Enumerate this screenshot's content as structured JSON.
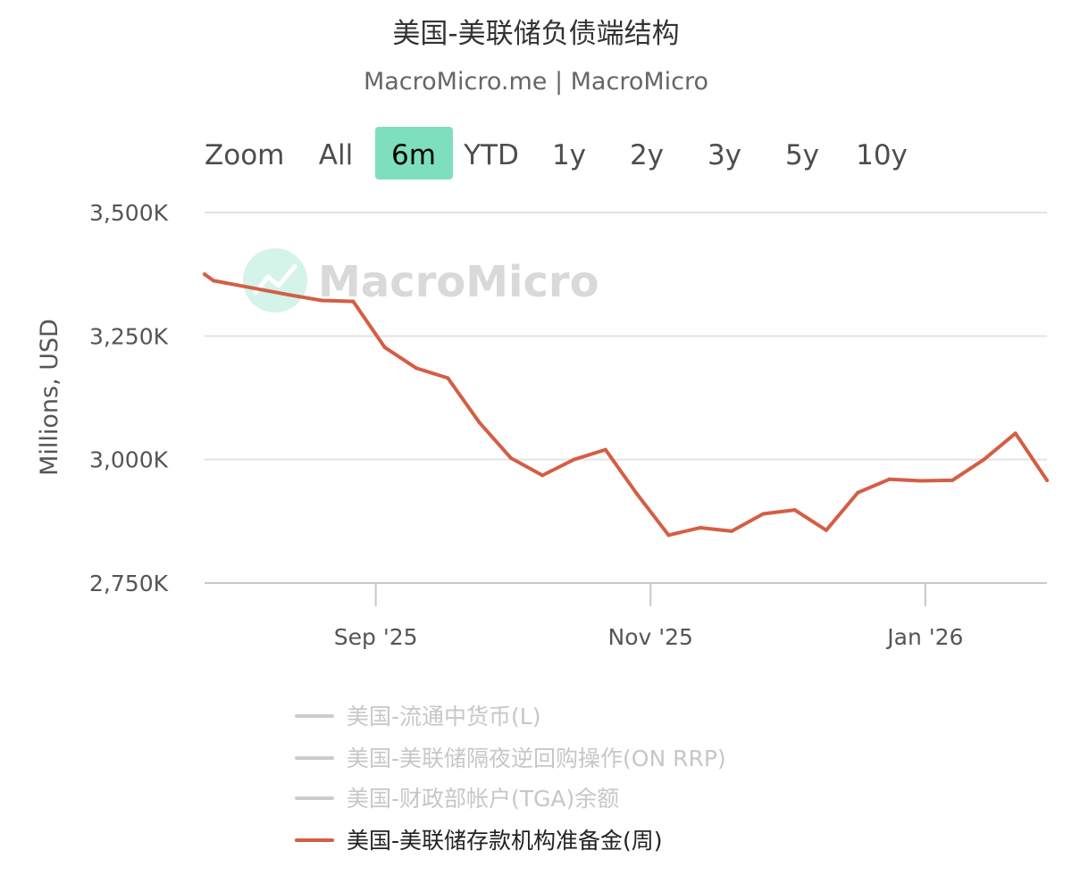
{
  "chart_data": {
    "type": "line",
    "title": "美国-美联储负债端结构",
    "subtitle": "MacroMicro.me | MacroMicro",
    "ylabel": "Millions, USD",
    "ylim": [
      2750000,
      3500000
    ],
    "y_ticks": [
      {
        "value": 3500000,
        "label": "3,500K"
      },
      {
        "value": 3250000,
        "label": "3,250K"
      },
      {
        "value": 3000000,
        "label": "3,000K"
      },
      {
        "value": 2750000,
        "label": "2,750K"
      }
    ],
    "xlim": [
      "2025-07-25",
      "2026-01-28"
    ],
    "x_ticks": [
      {
        "date": "2025-09-01",
        "label": "Sep '25"
      },
      {
        "date": "2025-11-01",
        "label": "Nov '25"
      },
      {
        "date": "2026-01-01",
        "label": "Jan '26"
      }
    ],
    "grid": true,
    "legend_position": "bottom",
    "watermark": "MacroMicro",
    "range_selector": {
      "label": "Zoom",
      "buttons": [
        "All",
        "6m",
        "YTD",
        "1y",
        "2y",
        "3y",
        "5y",
        "10y"
      ],
      "selected": "6m"
    },
    "series": [
      {
        "name": "美国-流通中货币(L)",
        "visible": false,
        "color": "#cccccc",
        "points": []
      },
      {
        "name": "美国-美联储隔夜逆回购操作(ON RRP)",
        "visible": false,
        "color": "#cccccc",
        "points": []
      },
      {
        "name": "美国-财政部帐户(TGA)余额",
        "visible": false,
        "color": "#cccccc",
        "points": []
      },
      {
        "name": "美国-美联储存款机构准备金(周)",
        "visible": true,
        "color": "#d45e45",
        "points": [
          {
            "x": "2025-07-25",
            "y": 3375000
          },
          {
            "x": "2025-07-27",
            "y": 3362000
          },
          {
            "x": "2025-08-13",
            "y": 3333000
          },
          {
            "x": "2025-08-20",
            "y": 3322000
          },
          {
            "x": "2025-08-27",
            "y": 3320000
          },
          {
            "x": "2025-09-03",
            "y": 3227000
          },
          {
            "x": "2025-09-10",
            "y": 3185000
          },
          {
            "x": "2025-09-17",
            "y": 3165000
          },
          {
            "x": "2025-09-24",
            "y": 3075000
          },
          {
            "x": "2025-10-01",
            "y": 3003000
          },
          {
            "x": "2025-10-08",
            "y": 2968000
          },
          {
            "x": "2025-10-15",
            "y": 3000000
          },
          {
            "x": "2025-10-22",
            "y": 3020000
          },
          {
            "x": "2025-10-29",
            "y": 2930000
          },
          {
            "x": "2025-11-05",
            "y": 2847000
          },
          {
            "x": "2025-11-12",
            "y": 2862000
          },
          {
            "x": "2025-11-19",
            "y": 2855000
          },
          {
            "x": "2025-11-26",
            "y": 2890000
          },
          {
            "x": "2025-12-03",
            "y": 2898000
          },
          {
            "x": "2025-12-10",
            "y": 2857000
          },
          {
            "x": "2025-12-17",
            "y": 2933000
          },
          {
            "x": "2025-12-24",
            "y": 2960000
          },
          {
            "x": "2025-12-31",
            "y": 2957000
          },
          {
            "x": "2026-01-07",
            "y": 2958000
          },
          {
            "x": "2026-01-14",
            "y": 3000000
          },
          {
            "x": "2026-01-21",
            "y": 3053000
          },
          {
            "x": "2026-01-28",
            "y": 2958000
          }
        ]
      }
    ]
  }
}
